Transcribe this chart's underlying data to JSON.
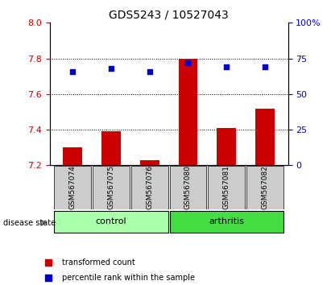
{
  "title": "GDS5243 / 10527043",
  "samples": [
    "GSM567074",
    "GSM567075",
    "GSM567076",
    "GSM567080",
    "GSM567081",
    "GSM567082"
  ],
  "groups": [
    "control",
    "control",
    "control",
    "arthritis",
    "arthritis",
    "arthritis"
  ],
  "bar_values": [
    7.3,
    7.39,
    7.23,
    7.8,
    7.41,
    7.52
  ],
  "dot_values": [
    66,
    68,
    66,
    72,
    69,
    69
  ],
  "ylim_left": [
    7.2,
    8.0
  ],
  "ylim_right": [
    0,
    100
  ],
  "yticks_left": [
    7.2,
    7.4,
    7.6,
    7.8,
    8.0
  ],
  "yticks_right": [
    0,
    25,
    50,
    75,
    100
  ],
  "bar_color": "#cc0000",
  "dot_color": "#0000cc",
  "bar_bottom": 7.2,
  "grid_values": [
    7.4,
    7.6,
    7.8
  ],
  "control_color": "#aaffaa",
  "arthritis_color": "#44dd44",
  "label_area_color": "#cccccc",
  "legend_bar_label": "transformed count",
  "legend_dot_label": "percentile rank within the sample",
  "group_label": "disease state"
}
